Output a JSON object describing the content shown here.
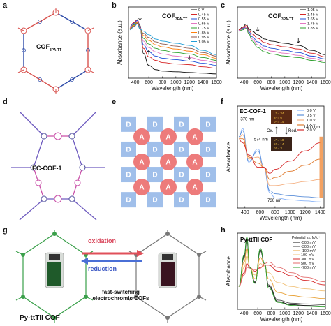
{
  "panels": {
    "a": {
      "letter": "a",
      "label_main": "COF",
      "label_sub": "3PA-TT"
    },
    "b": {
      "letter": "b",
      "label_main": "COF",
      "label_sub": "3PA-TT",
      "xlabel": "Wavelength (nm)",
      "ylabel": "Absorbance (a.u.)",
      "xticks": [
        "400",
        "600",
        "800",
        "1000",
        "1200",
        "1400",
        "1600"
      ],
      "legend": [
        "0 V",
        "0.45 V",
        "0.55 V",
        "0.65 V",
        "0.75 V",
        "0.85 V",
        "0.95 V",
        "1.05 V"
      ],
      "colors": [
        "#111111",
        "#d62728",
        "#1f4fd8",
        "#e377c2",
        "#2ca02c",
        "#ff7f0e",
        "#8c564b",
        "#1f9ed8"
      ]
    },
    "c": {
      "letter": "c",
      "label_main": "COF",
      "label_sub": "3PA-TT",
      "xlabel": "Wavelength (nm)",
      "ylabel": "Absorbance (a.u.)",
      "xticks": [
        "400",
        "600",
        "800",
        "1000",
        "1200",
        "1400",
        "1600"
      ],
      "legend": [
        "1.05 V",
        "1.45 V",
        "1.65 V",
        "1.75 V",
        "1.85 V"
      ],
      "colors": [
        "#111111",
        "#d62728",
        "#1f4fd8",
        "#e377c2",
        "#2ca02c"
      ]
    },
    "d": {
      "letter": "d",
      "label": "EC-COF-1"
    },
    "e": {
      "letter": "e",
      "node_D": "D",
      "node_A": "A"
    },
    "f": {
      "letter": "f",
      "label": "EC-COF-1",
      "xlabel": "Wavelength (nm)",
      "ylabel": "Absorbance",
      "xticks": [
        "400",
        "600",
        "800",
        "1000",
        "1200",
        "1400"
      ],
      "legend": [
        "0.0 V",
        "0.5 V",
        "1.0 V",
        "1.5 V",
        "2.0 V"
      ],
      "colors": [
        "#8ab4f8",
        "#5b8fd9",
        "#f4b183",
        "#e07a2e",
        "#d62728"
      ],
      "ann_370": "370 nm",
      "ann_574": "574 nm",
      "ann_730": "730 nm",
      "ann_1400": "1400 nm",
      "ox": "Ox.",
      "red": "Red.",
      "film_top": {
        "l": "L* = 34",
        "a": "a* = 6",
        "b": "b* = 14"
      },
      "film_bot": {
        "l": "L* = 18",
        "a": "a* = 14",
        "b": "b* = 3"
      }
    },
    "g": {
      "letter": "g",
      "oxidation": "oxidation",
      "reduction": "reduction",
      "caption": "Py-ttTII COF",
      "subcaption_1": "fast-switching",
      "subcaption_2": "electrochromic COFs"
    },
    "h": {
      "letter": "h",
      "label": "Py-ttTII COF",
      "xlabel": "Wavelength (nm)",
      "ylabel": "Absorbance",
      "xticks": [
        "400",
        "600",
        "800",
        "1000",
        "1200",
        "1400",
        "1600"
      ],
      "legend_title": "Potential vs. fc/fc⁺",
      "legend": [
        "-500 mV",
        "-300 mV",
        "-100 mV",
        "100 mV",
        "300 mV",
        "500 mV",
        "-700 mV"
      ],
      "colors": [
        "#111111",
        "#444444",
        "#e8a33a",
        "#f1c27a",
        "#d62728",
        "#e36b6b",
        "#2ca02c"
      ]
    }
  },
  "chart_data": [
    {
      "type": "line",
      "panel": "b",
      "xlabel": "Wavelength (nm)",
      "ylabel": "Absorbance (a.u.)",
      "xlim": [
        300,
        1600
      ],
      "series": [
        {
          "name": "0 V",
          "x": [
            320,
            380,
            430,
            470,
            520,
            600,
            700,
            800,
            1000,
            1200,
            1400,
            1600
          ],
          "y": [
            0.72,
            0.78,
            0.82,
            0.74,
            0.35,
            0.18,
            0.12,
            0.1,
            0.09,
            0.08,
            0.07,
            0.06
          ]
        },
        {
          "name": "0.45 V",
          "x": [
            320,
            380,
            430,
            470,
            520,
            600,
            700,
            800,
            1000,
            1200,
            1400,
            1600
          ],
          "y": [
            0.72,
            0.78,
            0.82,
            0.73,
            0.42,
            0.3,
            0.25,
            0.22,
            0.2,
            0.19,
            0.16,
            0.14
          ]
        },
        {
          "name": "0.55 V",
          "x": [
            320,
            380,
            430,
            470,
            520,
            600,
            700,
            800,
            1000,
            1200,
            1400,
            1600
          ],
          "y": [
            0.72,
            0.77,
            0.81,
            0.72,
            0.47,
            0.37,
            0.31,
            0.28,
            0.26,
            0.24,
            0.21,
            0.18
          ]
        },
        {
          "name": "0.65 V",
          "x": [
            320,
            380,
            430,
            470,
            520,
            600,
            700,
            800,
            1000,
            1200,
            1400,
            1600
          ],
          "y": [
            0.71,
            0.76,
            0.8,
            0.71,
            0.52,
            0.43,
            0.37,
            0.34,
            0.31,
            0.29,
            0.25,
            0.22
          ]
        },
        {
          "name": "0.75 V",
          "x": [
            320,
            380,
            430,
            470,
            520,
            600,
            700,
            800,
            1000,
            1200,
            1400,
            1600
          ],
          "y": [
            0.7,
            0.75,
            0.79,
            0.7,
            0.56,
            0.48,
            0.42,
            0.39,
            0.36,
            0.34,
            0.29,
            0.25
          ]
        },
        {
          "name": "0.85 V",
          "x": [
            320,
            380,
            430,
            470,
            520,
            600,
            700,
            800,
            1000,
            1200,
            1400,
            1600
          ],
          "y": [
            0.7,
            0.74,
            0.78,
            0.7,
            0.6,
            0.53,
            0.47,
            0.44,
            0.41,
            0.38,
            0.33,
            0.28
          ]
        },
        {
          "name": "0.95 V",
          "x": [
            320,
            380,
            430,
            470,
            520,
            600,
            700,
            800,
            1000,
            1200,
            1400,
            1600
          ],
          "y": [
            0.69,
            0.73,
            0.77,
            0.69,
            0.63,
            0.57,
            0.51,
            0.48,
            0.45,
            0.42,
            0.36,
            0.31
          ]
        },
        {
          "name": "1.05 V",
          "x": [
            320,
            380,
            430,
            470,
            520,
            600,
            700,
            800,
            1000,
            1200,
            1400,
            1600
          ],
          "y": [
            0.68,
            0.72,
            0.76,
            0.69,
            0.66,
            0.61,
            0.55,
            0.52,
            0.49,
            0.46,
            0.39,
            0.33
          ]
        }
      ]
    },
    {
      "type": "line",
      "panel": "c",
      "xlabel": "Wavelength (nm)",
      "ylabel": "Absorbance (a.u.)",
      "xlim": [
        300,
        1600
      ],
      "series": [
        {
          "name": "1.05 V",
          "x": [
            320,
            380,
            430,
            470,
            520,
            600,
            700,
            800,
            1000,
            1200,
            1400,
            1600
          ],
          "y": [
            0.68,
            0.72,
            0.76,
            0.69,
            0.66,
            0.61,
            0.55,
            0.52,
            0.49,
            0.46,
            0.39,
            0.33
          ]
        },
        {
          "name": "1.45 V",
          "x": [
            320,
            380,
            430,
            470,
            520,
            600,
            700,
            800,
            1000,
            1200,
            1400,
            1600
          ],
          "y": [
            0.68,
            0.71,
            0.74,
            0.67,
            0.62,
            0.56,
            0.5,
            0.47,
            0.44,
            0.41,
            0.35,
            0.3
          ]
        },
        {
          "name": "1.65 V",
          "x": [
            320,
            380,
            430,
            470,
            520,
            600,
            700,
            800,
            1000,
            1200,
            1400,
            1600
          ],
          "y": [
            0.67,
            0.7,
            0.72,
            0.65,
            0.58,
            0.51,
            0.45,
            0.42,
            0.39,
            0.36,
            0.31,
            0.27
          ]
        },
        {
          "name": "1.75 V",
          "x": [
            320,
            380,
            430,
            470,
            520,
            600,
            700,
            800,
            1000,
            1200,
            1400,
            1600
          ],
          "y": [
            0.67,
            0.69,
            0.71,
            0.63,
            0.55,
            0.47,
            0.41,
            0.38,
            0.35,
            0.32,
            0.28,
            0.24
          ]
        },
        {
          "name": "1.85 V",
          "x": [
            320,
            380,
            430,
            470,
            520,
            600,
            700,
            800,
            1000,
            1200,
            1400,
            1600
          ],
          "y": [
            0.66,
            0.68,
            0.7,
            0.62,
            0.52,
            0.43,
            0.37,
            0.34,
            0.31,
            0.29,
            0.25,
            0.22
          ]
        }
      ]
    },
    {
      "type": "line",
      "panel": "f",
      "xlabel": "Wavelength (nm)",
      "ylabel": "Absorbance",
      "xlim": [
        300,
        1450
      ],
      "series": [
        {
          "name": "0.0 V",
          "x": [
            320,
            370,
            450,
            574,
            650,
            730,
            800,
            1000,
            1200,
            1400
          ],
          "y": [
            0.7,
            0.78,
            0.45,
            0.58,
            0.4,
            0.15,
            0.1,
            0.08,
            0.07,
            0.06
          ]
        },
        {
          "name": "0.5 V",
          "x": [
            320,
            370,
            450,
            574,
            650,
            730,
            800,
            1000,
            1200,
            1400
          ],
          "y": [
            0.7,
            0.76,
            0.46,
            0.56,
            0.4,
            0.17,
            0.14,
            0.12,
            0.11,
            0.1
          ]
        },
        {
          "name": "1.0 V",
          "x": [
            320,
            370,
            450,
            574,
            650,
            730,
            800,
            1000,
            1200,
            1400
          ],
          "y": [
            0.69,
            0.72,
            0.48,
            0.5,
            0.4,
            0.22,
            0.22,
            0.24,
            0.26,
            0.28
          ]
        },
        {
          "name": "1.5 V",
          "x": [
            320,
            370,
            450,
            574,
            650,
            730,
            800,
            1000,
            1200,
            1400
          ],
          "y": [
            0.68,
            0.68,
            0.5,
            0.44,
            0.4,
            0.28,
            0.3,
            0.36,
            0.42,
            0.48
          ]
        },
        {
          "name": "2.0 V",
          "x": [
            320,
            370,
            450,
            574,
            650,
            730,
            800,
            1000,
            1200,
            1400
          ],
          "y": [
            0.67,
            0.64,
            0.52,
            0.4,
            0.4,
            0.34,
            0.38,
            0.46,
            0.56,
            0.64
          ]
        }
      ]
    },
    {
      "type": "line",
      "panel": "h",
      "xlabel": "Wavelength (nm)",
      "ylabel": "Absorbance",
      "xlim": [
        300,
        1600
      ],
      "series": [
        {
          "name": "-500 mV",
          "x": [
            320,
            400,
            440,
            480,
            560,
            640,
            700,
            760,
            900,
            1100,
            1300,
            1600
          ],
          "y": [
            0.3,
            0.7,
            0.92,
            0.55,
            0.35,
            0.78,
            0.6,
            0.3,
            0.1,
            0.06,
            0.05,
            0.04
          ]
        },
        {
          "name": "-300 mV",
          "x": [
            320,
            400,
            440,
            480,
            560,
            640,
            700,
            760,
            900,
            1100,
            1300,
            1600
          ],
          "y": [
            0.3,
            0.68,
            0.9,
            0.55,
            0.36,
            0.76,
            0.6,
            0.32,
            0.12,
            0.08,
            0.07,
            0.06
          ]
        },
        {
          "name": "-100 mV",
          "x": [
            320,
            400,
            440,
            480,
            560,
            640,
            700,
            760,
            900,
            1100,
            1300,
            1600
          ],
          "y": [
            0.3,
            0.62,
            0.8,
            0.55,
            0.4,
            0.68,
            0.58,
            0.4,
            0.22,
            0.18,
            0.16,
            0.14
          ]
        },
        {
          "name": "100 mV",
          "x": [
            320,
            400,
            440,
            480,
            560,
            640,
            700,
            760,
            900,
            1100,
            1300,
            1600
          ],
          "y": [
            0.3,
            0.55,
            0.7,
            0.55,
            0.45,
            0.6,
            0.56,
            0.48,
            0.35,
            0.3,
            0.27,
            0.24
          ]
        },
        {
          "name": "300 mV",
          "x": [
            320,
            400,
            440,
            480,
            560,
            640,
            700,
            760,
            900,
            1100,
            1300,
            1600
          ],
          "y": [
            0.3,
            0.48,
            0.6,
            0.55,
            0.5,
            0.55,
            0.58,
            0.58,
            0.5,
            0.44,
            0.38,
            0.32
          ]
        },
        {
          "name": "500 mV",
          "x": [
            320,
            400,
            440,
            480,
            560,
            640,
            700,
            760,
            900,
            1100,
            1300,
            1600
          ],
          "y": [
            0.3,
            0.45,
            0.55,
            0.54,
            0.52,
            0.54,
            0.6,
            0.62,
            0.55,
            0.48,
            0.42,
            0.36
          ]
        },
        {
          "name": "-700 mV",
          "x": [
            320,
            400,
            440,
            480,
            560,
            640,
            700,
            760,
            900,
            1100,
            1300,
            1600
          ],
          "y": [
            0.3,
            0.72,
            0.95,
            0.55,
            0.34,
            0.8,
            0.6,
            0.28,
            0.09,
            0.05,
            0.04,
            0.03
          ]
        }
      ]
    }
  ]
}
